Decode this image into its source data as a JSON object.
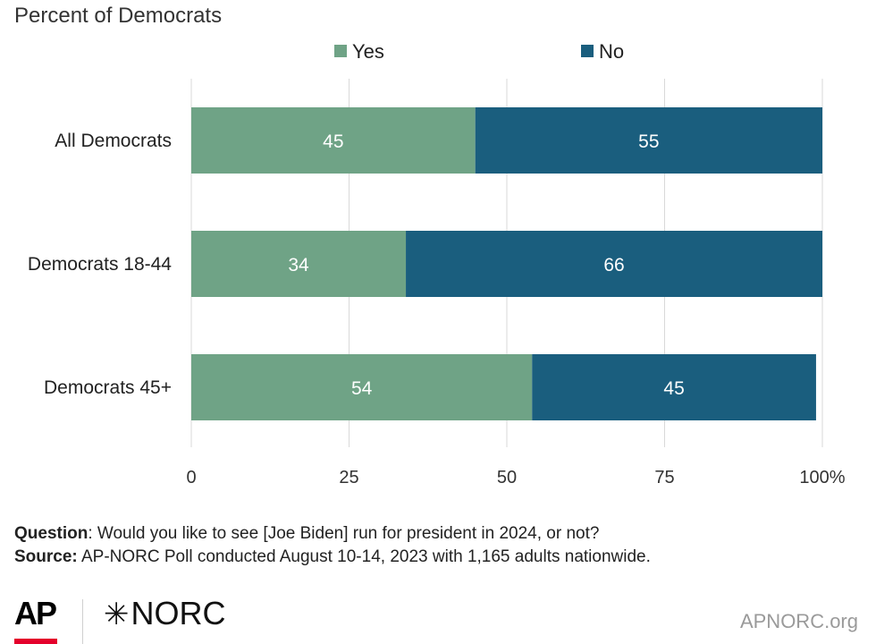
{
  "subtitle": "Percent of Democrats",
  "question_label": "Question",
  "question_text": ": Would you like to see [Joe Biden] run for president in 2024, or not?",
  "source_label": "Source:",
  "source_text": " AP-NORC Poll conducted August 10-14, 2023 with 1,165 adults nationwide.",
  "footer": {
    "ap_logo": "AP",
    "norc_logo_star": "✳",
    "norc_logo": "NORC",
    "site": "APNORC.org"
  },
  "colors": {
    "yes": "#6fa386",
    "no": "#1a5e7e",
    "grid": "#d9d9d9"
  },
  "chart_data": {
    "type": "bar",
    "orientation": "horizontal",
    "stacked": true,
    "categories": [
      "All Democrats",
      "Democrats 18-44",
      "Democrats 45+"
    ],
    "series": [
      {
        "name": "Yes",
        "values": [
          45,
          34,
          54
        ]
      },
      {
        "name": "No",
        "values": [
          55,
          66,
          45
        ]
      }
    ],
    "xlim": [
      0,
      100
    ],
    "xticks": [
      "0",
      "25",
      "50",
      "75",
      "100%"
    ],
    "grid": true,
    "legend": "top"
  }
}
